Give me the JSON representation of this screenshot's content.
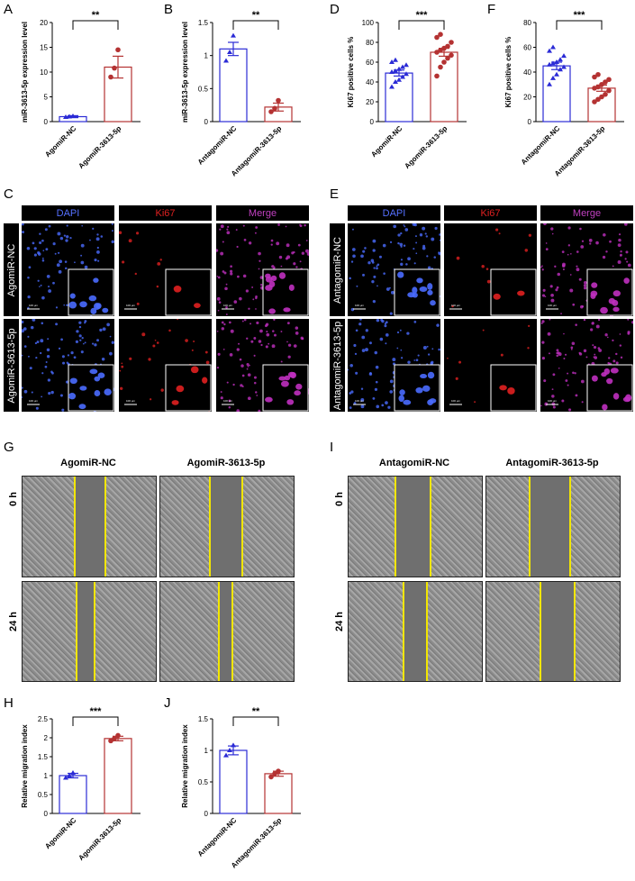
{
  "panels": {
    "A": {
      "letter": "A",
      "ylabel": "miR-3613-5p expression level",
      "sig": "**"
    },
    "B": {
      "letter": "B",
      "ylabel": "miR-3613-5p expression level",
      "sig": "**"
    },
    "D": {
      "letter": "D",
      "ylabel": "Ki67 positive cells %",
      "sig": "***"
    },
    "F": {
      "letter": "F",
      "ylabel": "Ki67 positive cells %",
      "sig": "***"
    },
    "C": {
      "letter": "C"
    },
    "E": {
      "letter": "E"
    },
    "G": {
      "letter": "G"
    },
    "I": {
      "letter": "I"
    },
    "H": {
      "letter": "H",
      "ylabel": "Relative migration index",
      "sig": "***"
    },
    "J": {
      "letter": "J",
      "ylabel": "Relative migration index",
      "sig": "**"
    }
  },
  "if_headers": {
    "dapi": "DAPI",
    "ki67": "Ki67",
    "merge": "Merge"
  },
  "if_rows": {
    "C": [
      "AgomiR-NC",
      "AgomiR-3613-5p"
    ],
    "E": [
      "AntagomiR-NC",
      "AntagomiR-3613-5p"
    ]
  },
  "scale_bar": "100 μm",
  "wound": {
    "G_cols": [
      "AgomiR-NC",
      "AgomiR-3613-5p"
    ],
    "I_cols": [
      "AntagomiR-NC",
      "AntagomiR-3613-5p"
    ],
    "times": [
      "0 h",
      "24 h"
    ]
  },
  "colors": {
    "nc": "#2b2bd6",
    "treat": "#b43232",
    "dapi": "#4a6cff",
    "ki67": "#e02020",
    "merge": "#c030c0"
  },
  "chart_data": [
    {
      "id": "A",
      "type": "bar",
      "categories": [
        "AgomiR-NC",
        "AgomiR-3613-5p"
      ],
      "values": [
        1.0,
        11.0
      ],
      "errors": [
        0.2,
        2.2
      ],
      "points": [
        [
          0.9,
          1.0,
          1.1
        ],
        [
          9.0,
          10.8,
          14.5
        ]
      ],
      "ylabel": "miR-3613-5p expression level",
      "ylim": [
        0,
        20
      ],
      "yticks": [
        0,
        5,
        10,
        15,
        20
      ],
      "sig": "**"
    },
    {
      "id": "B",
      "type": "bar",
      "categories": [
        "AntagomiR-NC",
        "AntagomiR-3613-5p"
      ],
      "values": [
        1.1,
        0.22
      ],
      "errors": [
        0.1,
        0.06
      ],
      "points": [
        [
          0.92,
          1.05,
          1.3
        ],
        [
          0.15,
          0.2,
          0.32
        ]
      ],
      "ylabel": "miR-3613-5p expression level",
      "ylim": [
        0,
        1.5
      ],
      "yticks": [
        0.0,
        0.5,
        1.0,
        1.5
      ],
      "sig": "**"
    },
    {
      "id": "D",
      "type": "bar",
      "categories": [
        "AgomiR-NC",
        "AgomiR-3613-5p"
      ],
      "values": [
        49,
        70
      ],
      "errors": [
        3,
        4
      ],
      "points": [
        [
          35,
          40,
          42,
          45,
          48,
          50,
          51,
          53,
          55,
          57,
          60,
          62
        ],
        [
          46,
          55,
          60,
          64,
          67,
          70,
          72,
          74,
          76,
          80,
          85,
          88
        ]
      ],
      "ylabel": "Ki67 positive cells %",
      "ylim": [
        0,
        100
      ],
      "yticks": [
        0,
        20,
        40,
        60,
        80,
        100
      ],
      "sig": "***"
    },
    {
      "id": "F",
      "type": "bar",
      "categories": [
        "AntagomiR-NC",
        "AntagomiR-3613-5p"
      ],
      "values": [
        45,
        27
      ],
      "errors": [
        3,
        2.5
      ],
      "points": [
        [
          30,
          35,
          38,
          42,
          44,
          46,
          47,
          48,
          50,
          53,
          57,
          60
        ],
        [
          16,
          18,
          20,
          22,
          25,
          27,
          28,
          30,
          32,
          34,
          36,
          38
        ]
      ],
      "ylabel": "Ki67 positive cells %",
      "ylim": [
        0,
        80
      ],
      "yticks": [
        0,
        20,
        40,
        60,
        80
      ],
      "sig": "***"
    },
    {
      "id": "H",
      "type": "bar",
      "categories": [
        "AgomiR-NC",
        "AgomiR-3613-5p"
      ],
      "values": [
        1.0,
        1.98
      ],
      "errors": [
        0.06,
        0.06
      ],
      "points": [
        [
          0.94,
          1.0,
          1.07
        ],
        [
          1.92,
          1.98,
          2.06
        ]
      ],
      "ylabel": "Relative migration index",
      "ylim": [
        0,
        2.5
      ],
      "yticks": [
        0.0,
        0.5,
        1.0,
        1.5,
        2.0,
        2.5
      ],
      "sig": "***"
    },
    {
      "id": "J",
      "type": "bar",
      "categories": [
        "AntagomiR-NC",
        "AntagomiR-3613-5p"
      ],
      "values": [
        1.0,
        0.63
      ],
      "errors": [
        0.07,
        0.04
      ],
      "points": [
        [
          0.92,
          1.0,
          1.08
        ],
        [
          0.58,
          0.63,
          0.67
        ]
      ],
      "ylabel": "Relative migration index",
      "ylim": [
        0,
        1.5
      ],
      "yticks": [
        0.0,
        0.5,
        1.0,
        1.5
      ],
      "sig": "**"
    }
  ]
}
